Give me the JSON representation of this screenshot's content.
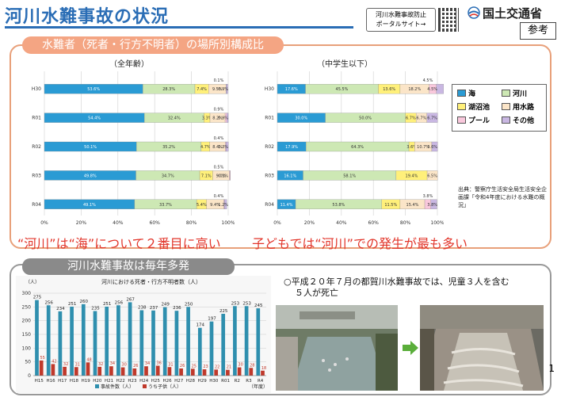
{
  "header": {
    "title": "河川水難事故の状況",
    "portal_line1": "河川水難事故防止",
    "portal_line2": "ポータルサイト→",
    "ministry": "国土交通省",
    "tag": "参考"
  },
  "section1": {
    "title": "水難者（死者・行方不明者）の場所別構成比",
    "left_subtitle": "（全年齢）",
    "right_subtitle": "（中学生以下）",
    "left_message": "“河川”は“海”について２番目に高い",
    "right_message": "子どもでは“河川”での発生が最も多い",
    "source": "出典：警察庁生活安全局生活安全企画課「令和4年度における水難の概況」"
  },
  "legend": [
    {
      "label": "海",
      "color": "#2a9bd4"
    },
    {
      "label": "河川",
      "color": "#cde8b4"
    },
    {
      "label": "湖沼池",
      "color": "#fff07a"
    },
    {
      "label": "用水路",
      "color": "#fbe5c8"
    },
    {
      "label": "プール",
      "color": "#f9c8dc"
    },
    {
      "label": "その他",
      "color": "#c9b7e2"
    }
  ],
  "section2": {
    "title": "河川水難事故は毎年多発",
    "note_line1": "○平成２０年７月の都賀川水難事故では、児童３人を含む",
    "note_line2": "５人が死亡"
  },
  "page_number": "1",
  "chart_data": [
    {
      "type": "bar",
      "orientation": "horizontal-stacked-100",
      "title": "（全年齢）",
      "categories": [
        "H30",
        "R01",
        "R02",
        "R03",
        "R04"
      ],
      "series": [
        {
          "name": "海",
          "values": [
            53.6,
            54.4,
            50.1,
            49.8,
            49.1
          ]
        },
        {
          "name": "河川",
          "values": [
            28.3,
            32.4,
            35.2,
            34.7,
            33.7
          ]
        },
        {
          "name": "湖沼池",
          "values": [
            7.4,
            3.3,
            4.7,
            7.1,
            5.4
          ]
        },
        {
          "name": "用水路",
          "values": [
            9.5,
            8.2,
            8.4,
            9.0,
            9.4
          ]
        },
        {
          "name": "プール",
          "values": [
            0.1,
            0.9,
            0.4,
            0.5,
            0.4
          ]
        },
        {
          "name": "その他",
          "values": [
            0.9,
            0.9,
            1.3,
            0.1,
            1.2
          ]
        }
      ],
      "labels": [
        [
          "53.6%",
          "28.3%",
          "7.4%",
          "9.5%",
          "0.1%",
          "0.9%"
        ],
        [
          "54.4%",
          "32.4%",
          "3.3%",
          "8.2%",
          "0.9%",
          "0.9%"
        ],
        [
          "50.1%",
          "35.2%",
          "4.7%",
          "8.4%",
          "0.4%",
          "1.3%"
        ],
        [
          "49.8%",
          "34.7%",
          "7.1%",
          "9.0%",
          "0.5%",
          "0.1%"
        ],
        [
          "49.1%",
          "33.7%",
          "5.4%",
          "9.4%",
          "0.4%",
          "1.2%"
        ]
      ],
      "xticks": [
        "0%",
        "20%",
        "40%",
        "60%",
        "80%",
        "100%"
      ],
      "xlim": [
        0,
        100
      ]
    },
    {
      "type": "bar",
      "orientation": "horizontal-stacked-100",
      "title": "（中学生以下）",
      "categories": [
        "H30",
        "R01",
        "R02",
        "R03",
        "R04"
      ],
      "series": [
        {
          "name": "海",
          "values": [
            17.6,
            30.0,
            17.9,
            16.1,
            11.4
          ]
        },
        {
          "name": "河川",
          "values": [
            45.5,
            50.0,
            64.3,
            58.1,
            53.8
          ]
        },
        {
          "name": "湖沼池",
          "values": [
            13.6,
            6.7,
            3.6,
            19.4,
            11.5
          ]
        },
        {
          "name": "用水路",
          "values": [
            18.2,
            6.7,
            10.7,
            6.5,
            15.4
          ]
        },
        {
          "name": "プール",
          "values": [
            4.5,
            0,
            0,
            0,
            3.8
          ]
        },
        {
          "name": "その他",
          "values": [
            4.5,
            6.7,
            3.6,
            0,
            3.8
          ]
        }
      ],
      "labels": [
        [
          "17.6%",
          "45.5%",
          "13.6%",
          "18.2%",
          "4.5%",
          "4.5%"
        ],
        [
          "30.0%",
          "50.0%",
          "6.7%",
          "6.7%",
          "",
          "6.7%"
        ],
        [
          "17.9%",
          "64.3%",
          "3.6%",
          "10.7%",
          "",
          "3.6%"
        ],
        [
          "16.1%",
          "58.1%",
          "19.4%",
          "6.5%",
          "",
          ""
        ],
        [
          "11.4%",
          "53.8%",
          "11.5%",
          "15.4%",
          "3.8%",
          "3.8%"
        ]
      ],
      "xticks": [
        "0%",
        "20%",
        "40%",
        "60%",
        "80%",
        "100%"
      ],
      "xlim": [
        0,
        100
      ]
    },
    {
      "type": "bar",
      "title": "河川における死者・行方不明者数（人）",
      "ylabel": "（人）",
      "xlabel": "（年度）",
      "categories": [
        "H15",
        "H16",
        "H17",
        "H18",
        "H19",
        "H20",
        "H21",
        "H22",
        "H23",
        "H24",
        "H25",
        "H26",
        "H27",
        "H28",
        "H29",
        "H30",
        "R01",
        "R2",
        "R3",
        "R4"
      ],
      "series": [
        {
          "name": "事故件数（人）",
          "values": [
            275,
            256,
            234,
            251,
            260,
            235,
            251,
            256,
            267,
            238,
            237,
            249,
            236,
            250,
            174,
            197,
            225,
            253,
            253,
            245
          ],
          "color": "#2f8fae"
        },
        {
          "name": "うち子供（人）",
          "values": [
            55,
            42,
            32,
            31,
            48,
            32,
            34,
            30,
            26,
            34,
            36,
            31,
            26,
            25,
            23,
            22,
            21,
            30,
            28,
            18
          ],
          "color": "#c0392b"
        }
      ],
      "value_labels": [
        "275",
        "256",
        "234",
        "251",
        "260",
        "235",
        "251",
        "256",
        "267",
        "238",
        "237",
        "249",
        "236",
        "250",
        "174",
        "197",
        "225",
        "253",
        "253",
        "245"
      ],
      "child_labels": [
        "55",
        "42",
        "32",
        "31",
        "48",
        "32",
        "34",
        "30",
        "26",
        "34",
        "36",
        "31",
        "26",
        "25",
        "23",
        "22",
        "21",
        "30",
        "28",
        "18"
      ],
      "yticks": [
        "0",
        "50",
        "100",
        "150",
        "200",
        "250",
        "300"
      ],
      "ylim": [
        0,
        300
      ]
    }
  ]
}
